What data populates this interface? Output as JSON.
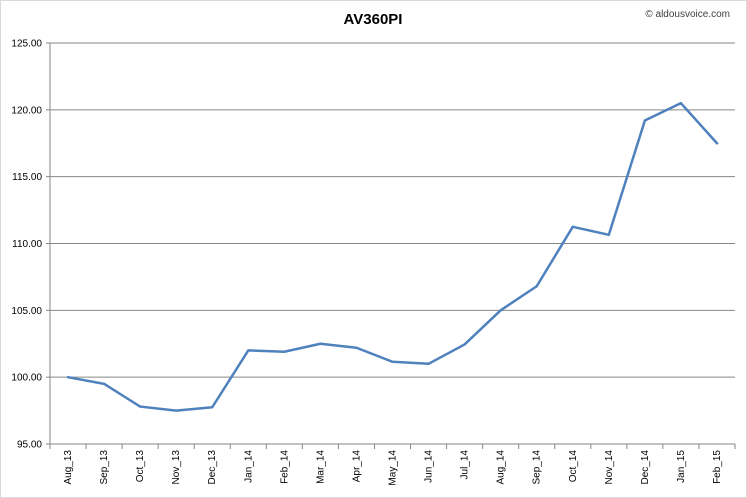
{
  "chart_data": {
    "type": "line",
    "title": "AV360PI",
    "copyright": "© aldousvoice.com",
    "categories": [
      "Aug_13",
      "Sep_13",
      "Oct_13",
      "Nov_13",
      "Dec_13",
      "Jan_14",
      "Feb_14",
      "Mar_14",
      "Apr_14",
      "May_14",
      "Jun_14",
      "Jul_14",
      "Aug_14",
      "Sep_14",
      "Oct_14",
      "Nov_14",
      "Dec_14",
      "Jan_15",
      "Feb_15"
    ],
    "series": [
      {
        "values": [
          100.0,
          99.5,
          97.8,
          97.5,
          97.75,
          102.0,
          101.9,
          102.5,
          102.2,
          101.15,
          101.0,
          102.45,
          105.0,
          106.8,
          111.25,
          110.65,
          119.2,
          120.5,
          117.5
        ],
        "color": "#4f81bd"
      }
    ],
    "ylim": [
      95.0,
      125.0
    ],
    "yticks": [
      "95.00",
      "100.00",
      "105.00",
      "110.00",
      "115.00",
      "120.00",
      "125.00"
    ],
    "xlabel": "",
    "ylabel": "",
    "grid": true,
    "legend": "none"
  }
}
